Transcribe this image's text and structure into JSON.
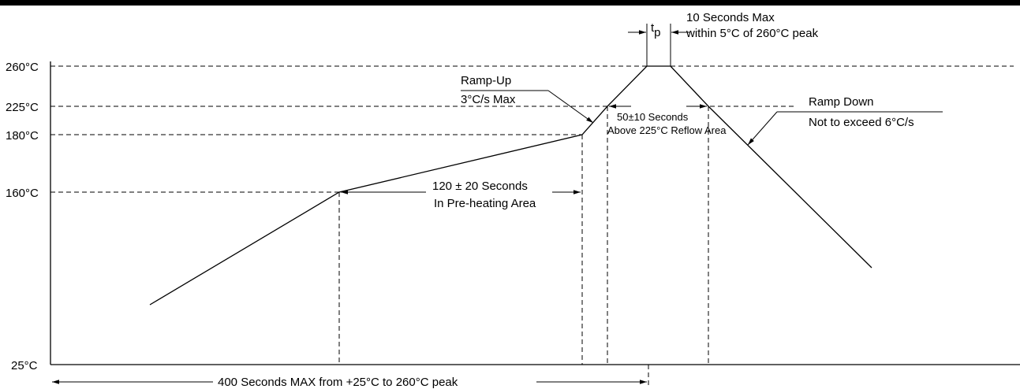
{
  "chart_data": {
    "type": "line",
    "y_axis_ticks": [
      "260°C",
      "225°C",
      "180°C",
      "160°C",
      "25°C"
    ],
    "profile_temperatures_c": [
      160,
      180,
      225,
      260
    ],
    "annotations": {
      "peak_time_symbol": "t",
      "peak_time_subscript": "p",
      "peak_note_line1": "10 Seconds Max",
      "peak_note_line2": "within 5°C of 260°C peak",
      "ramp_up_line1": "Ramp-Up",
      "ramp_up_line2": "3°C/s Max",
      "reflow_line1": "50±10 Seconds",
      "reflow_line2": "Above 225°C Reflow Area",
      "ramp_down_line1": "Ramp Down",
      "ramp_down_line2": "Not to exceed 6°C/s",
      "preheat_line1": "120 ± 20 Seconds",
      "preheat_line2": "In Pre-heating Area",
      "total_time": "400 Seconds MAX from +25°C to 260°C peak"
    }
  }
}
